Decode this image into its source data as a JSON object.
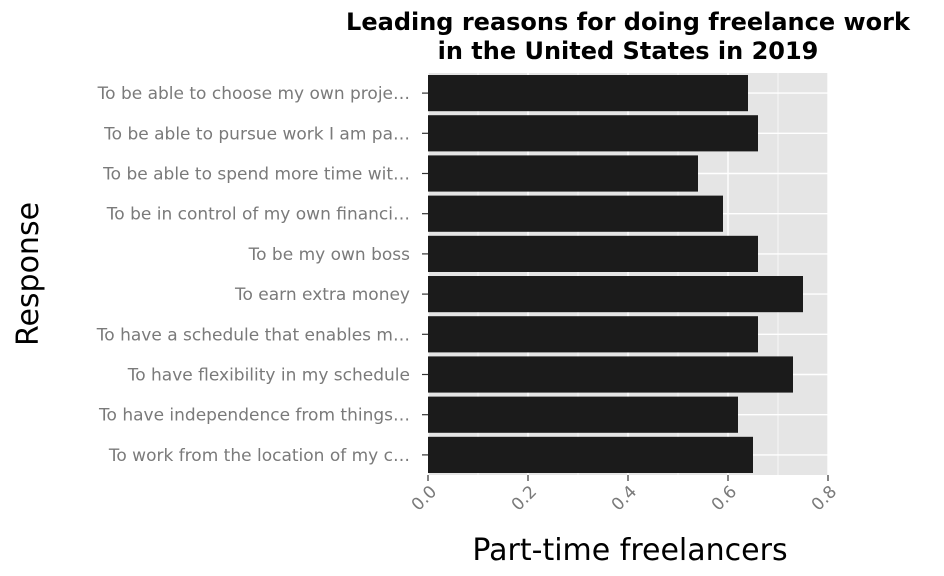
{
  "chart_data": {
    "type": "bar",
    "orientation": "horizontal",
    "title_lines": [
      "Leading reasons for doing freelance work",
      "in the United States in 2019"
    ],
    "xlabel": "Part-time freelancers",
    "ylabel": "Response",
    "xlim": [
      0,
      0.8
    ],
    "xticks": [
      "0.0",
      "0.2",
      "0.4",
      "0.6",
      "0.8"
    ],
    "xtick_values": [
      0,
      0.2,
      0.4,
      0.6,
      0.8
    ],
    "grid": true,
    "colors": {
      "bar": "#1b1b1b",
      "panel": "#e5e5e5",
      "grid": "#ffffff"
    },
    "categories": [
      "To be able to choose my own proje…",
      "To be able to pursue work I am pa…",
      "To be able to spend more time wit…",
      "To be in control of my own financi…",
      "To be my own boss",
      "To earn extra money",
      "To have a schedule that enables m…",
      "To have flexibility in my schedule",
      "To have independence from things…",
      "To work from the location of my c…"
    ],
    "values": [
      0.64,
      0.66,
      0.54,
      0.59,
      0.66,
      0.75,
      0.66,
      0.73,
      0.62,
      0.65
    ]
  }
}
